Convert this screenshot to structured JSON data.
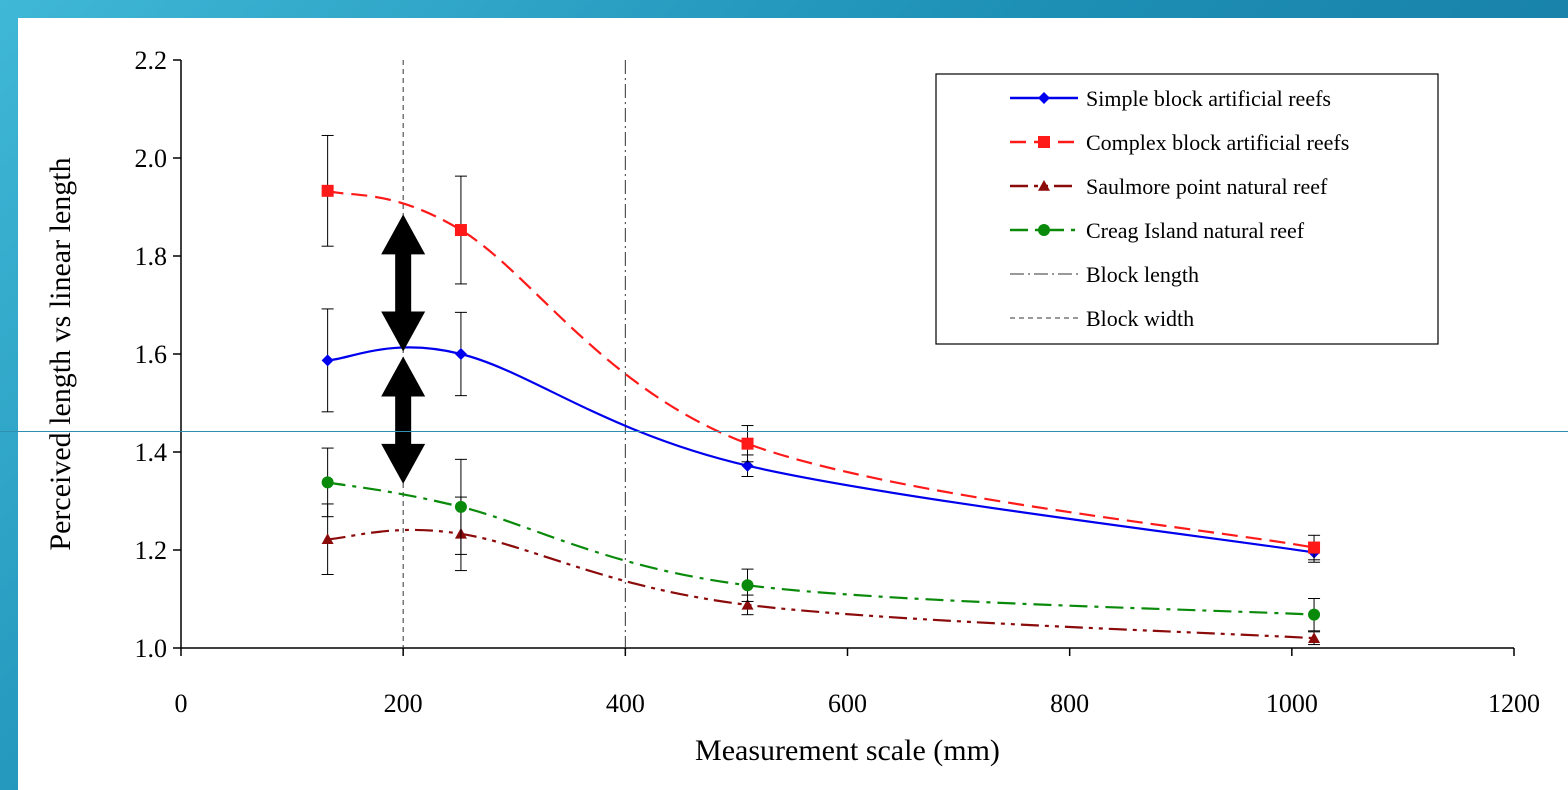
{
  "chart_data": {
    "type": "line",
    "title": "",
    "xlabel": "Measurement scale (mm)",
    "ylabel": "Perceived length vs linear length",
    "xlim": [
      0,
      1200
    ],
    "ylim": [
      1.0,
      2.2
    ],
    "xticks": [
      "0",
      "200",
      "400",
      "600",
      "800",
      "1000",
      "1200"
    ],
    "yticks": [
      "1.0",
      "1.2",
      "1.4",
      "1.6",
      "1.8",
      "2.0",
      "2.2"
    ],
    "grid": false,
    "legend_position": "top-right",
    "x": [
      132,
      252,
      510,
      1020
    ],
    "series": [
      {
        "name": "Simple block artificial reefs",
        "values": [
          1.587,
          1.6,
          1.372,
          1.195
        ],
        "err": [
          0.105,
          0.085,
          0.022,
          0.02
        ],
        "color": "#0000ee",
        "marker": "diamond",
        "dash": "solid"
      },
      {
        "name": "Complex block artificial reefs",
        "values": [
          1.933,
          1.853,
          1.417,
          1.205
        ],
        "err": [
          0.113,
          0.11,
          0.037,
          0.025
        ],
        "color": "#ff1a1a",
        "marker": "square",
        "dash": "dashed"
      },
      {
        "name": "Saulmore point natural reef",
        "values": [
          1.222,
          1.233,
          1.088,
          1.02
        ],
        "err": [
          0.072,
          0.075,
          0.02,
          0.013
        ],
        "color": "#8b0a0a",
        "marker": "triangle",
        "dash": "dash-dot-dot"
      },
      {
        "name": "Creag Island natural reef",
        "values": [
          1.338,
          1.288,
          1.128,
          1.068
        ],
        "err": [
          0.07,
          0.097,
          0.033,
          0.033
        ],
        "color": "#0a8a0a",
        "marker": "circle",
        "dash": "dash-dot"
      }
    ],
    "reference_lines": [
      {
        "name": "Block length",
        "x": 400
      },
      {
        "name": "Block width",
        "x": 200
      }
    ],
    "annotations": [
      {
        "type": "double-arrow",
        "x": 200,
        "y_from": 1.605,
        "y_to": 1.885
      },
      {
        "type": "double-arrow",
        "x": 200,
        "y_from": 1.335,
        "y_to": 1.595
      }
    ]
  }
}
